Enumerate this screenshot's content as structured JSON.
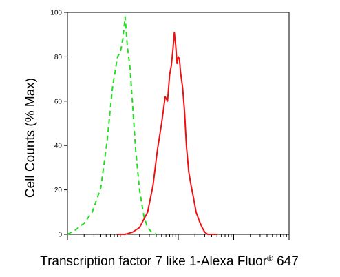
{
  "chart_data": {
    "type": "line",
    "title": "",
    "xlabel": "Transcription factor 7 like 1-Alexa Fluor",
    "xlabel_superscript": "®",
    "xlabel_suffix": " 647",
    "ylabel": "Cell Counts (% Max)",
    "x_scale": "log",
    "xlim": [
      100,
      1000000
    ],
    "ylim": [
      0,
      100
    ],
    "y_ticks": [
      0,
      20,
      40,
      60,
      80,
      100
    ],
    "grid": false,
    "legend": "none",
    "series": [
      {
        "color": "#22dd22",
        "style": "dashed",
        "x": [
          100,
          140,
          200,
          280,
          400,
          520,
          650,
          800,
          900,
          1000,
          1100,
          1200,
          1350,
          1500,
          1700,
          2000,
          2400,
          2800,
          3300,
          4000
        ],
        "y": [
          0,
          2,
          5,
          10,
          21,
          42,
          66,
          80,
          82,
          88,
          98,
          85,
          75,
          58,
          38,
          20,
          8,
          3,
          1,
          0
        ]
      },
      {
        "color": "#ee1111",
        "style": "solid",
        "x": [
          800,
          1100,
          1500,
          2000,
          2800,
          3500,
          4200,
          5000,
          5800,
          6400,
          7000,
          7500,
          8000,
          8500,
          9000,
          9500,
          10000,
          10500,
          11000,
          12000,
          13000,
          14000,
          15500,
          17000,
          19000,
          21000,
          24000,
          27000,
          30000,
          34000,
          40000,
          50000
        ],
        "y": [
          0,
          0,
          1,
          3,
          10,
          22,
          38,
          50,
          62,
          60,
          72,
          76,
          83,
          91,
          85,
          77,
          80,
          79,
          73,
          66,
          55,
          40,
          28,
          22,
          16,
          10,
          6,
          3,
          1,
          0,
          0,
          0
        ]
      }
    ]
  }
}
